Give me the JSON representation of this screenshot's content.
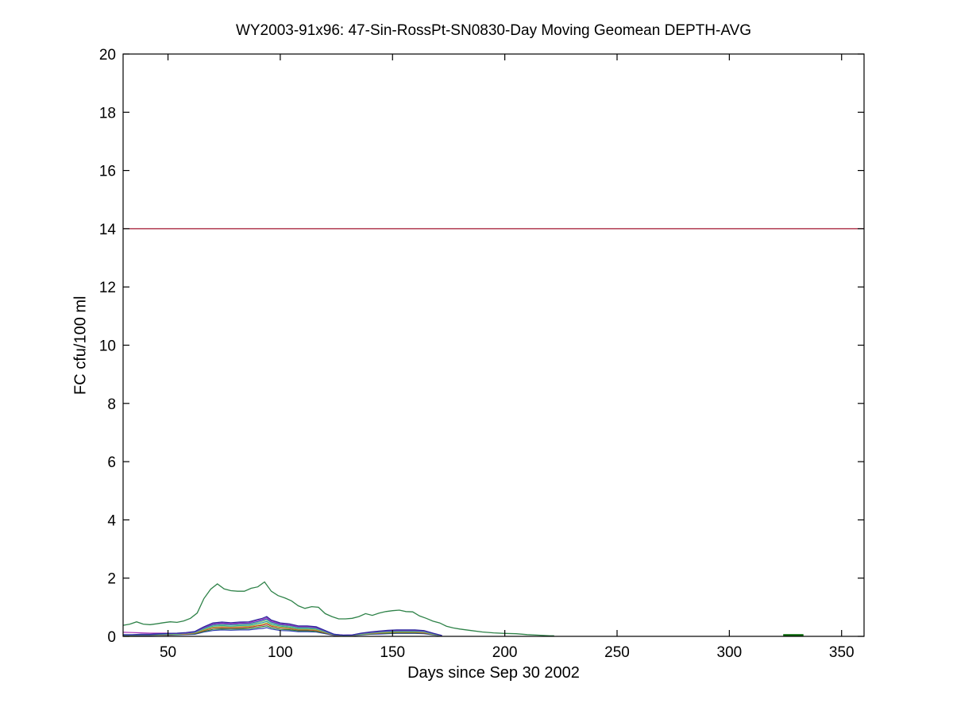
{
  "figure": {
    "background": "#ffffff"
  },
  "chart_data": {
    "type": "line",
    "title": "WY2003-91x96: 47-Sin-RossPt-SN0830-Day Moving Geomean DEPTH-AVG",
    "xlabel": "Days since Sep 30 2002",
    "ylabel": "FC cfu/100 ml",
    "xlim": [
      30,
      360
    ],
    "ylim": [
      0,
      20
    ],
    "xticks": [
      50,
      100,
      150,
      200,
      250,
      300,
      350
    ],
    "yticks": [
      0,
      2,
      4,
      6,
      8,
      10,
      12,
      14,
      16,
      18,
      20
    ],
    "grid": false,
    "legend": null,
    "axis_color": "#000000",
    "series": [
      {
        "name": "geomean-upper-envelope",
        "color": "#2e8248",
        "width": 1.3,
        "x": [
          30,
          33,
          36,
          39,
          42,
          45,
          48,
          51,
          54,
          57,
          60,
          63,
          66,
          69,
          72,
          75,
          78,
          81,
          84,
          87,
          90,
          93,
          96,
          99,
          102,
          105,
          108,
          111,
          114,
          117,
          120,
          123,
          126,
          129,
          132,
          135,
          138,
          141,
          144,
          147,
          150,
          153,
          156,
          159,
          162,
          165,
          168,
          171,
          174,
          177,
          180,
          185,
          190,
          195,
          200,
          205,
          210,
          215,
          220,
          222
        ],
        "y": [
          0.38,
          0.42,
          0.5,
          0.42,
          0.4,
          0.43,
          0.47,
          0.5,
          0.48,
          0.53,
          0.62,
          0.8,
          1.3,
          1.62,
          1.8,
          1.63,
          1.57,
          1.55,
          1.55,
          1.65,
          1.7,
          1.87,
          1.55,
          1.4,
          1.32,
          1.22,
          1.05,
          0.96,
          1.02,
          1.0,
          0.78,
          0.68,
          0.6,
          0.6,
          0.62,
          0.68,
          0.78,
          0.72,
          0.8,
          0.85,
          0.88,
          0.9,
          0.85,
          0.84,
          0.7,
          0.62,
          0.52,
          0.46,
          0.35,
          0.29,
          0.25,
          0.2,
          0.15,
          0.12,
          0.1,
          0.09,
          0.06,
          0.04,
          0.02,
          0.02
        ]
      },
      {
        "name": "scenario-medium-blue",
        "color": "#2d3cb4",
        "width": 1.2,
        "x": [
          30,
          34,
          38,
          42,
          46,
          50,
          54,
          58,
          62,
          66,
          70,
          74,
          78,
          82,
          86,
          90,
          92,
          94,
          96,
          100,
          104,
          108,
          112,
          116,
          120,
          124,
          128,
          132,
          136,
          140,
          144,
          148,
          152,
          156,
          160,
          164,
          168,
          172
        ],
        "y": [
          0.03,
          0.03,
          0.03,
          0.03,
          0.04,
          0.04,
          0.05,
          0.06,
          0.07,
          0.15,
          0.2,
          0.22,
          0.21,
          0.22,
          0.22,
          0.26,
          0.27,
          0.3,
          0.25,
          0.2,
          0.19,
          0.16,
          0.16,
          0.15,
          0.09,
          0.03,
          0.02,
          0.02,
          0.05,
          0.07,
          0.08,
          0.09,
          0.1,
          0.1,
          0.1,
          0.09,
          0.05,
          0.01
        ]
      },
      {
        "name": "scenario-dark-green",
        "color": "#2e8232",
        "width": 1.2,
        "x": [
          30,
          34,
          38,
          42,
          46,
          50,
          54,
          58,
          62,
          66,
          70,
          74,
          78,
          82,
          86,
          90,
          92,
          94,
          96,
          100,
          104,
          108,
          112,
          116,
          120,
          124,
          128,
          132,
          136,
          140,
          144,
          148,
          152,
          156,
          160,
          164,
          168,
          172
        ],
        "y": [
          0.03,
          0.03,
          0.04,
          0.04,
          0.05,
          0.05,
          0.06,
          0.07,
          0.09,
          0.17,
          0.24,
          0.26,
          0.25,
          0.26,
          0.27,
          0.31,
          0.33,
          0.36,
          0.3,
          0.24,
          0.23,
          0.19,
          0.19,
          0.17,
          0.11,
          0.04,
          0.02,
          0.03,
          0.06,
          0.08,
          0.1,
          0.11,
          0.12,
          0.12,
          0.12,
          0.11,
          0.06,
          0.02
        ]
      },
      {
        "name": "scenario-red",
        "color": "#c03232",
        "width": 1.2,
        "x": [
          30,
          34,
          38,
          42,
          46,
          50,
          54,
          58,
          62,
          66,
          70,
          74,
          78,
          82,
          86,
          90,
          92,
          94,
          96,
          100,
          104,
          108,
          112,
          116,
          120,
          124,
          128,
          132,
          136,
          140,
          144,
          148,
          152,
          156,
          160,
          164,
          168,
          172
        ],
        "y": [
          0.04,
          0.04,
          0.04,
          0.04,
          0.06,
          0.06,
          0.07,
          0.08,
          0.11,
          0.2,
          0.29,
          0.3,
          0.29,
          0.3,
          0.31,
          0.36,
          0.38,
          0.42,
          0.35,
          0.29,
          0.27,
          0.22,
          0.22,
          0.2,
          0.12,
          0.04,
          0.02,
          0.03,
          0.07,
          0.09,
          0.11,
          0.13,
          0.14,
          0.14,
          0.14,
          0.12,
          0.07,
          0.02
        ]
      },
      {
        "name": "scenario-olive",
        "color": "#b4b432",
        "width": 1.2,
        "x": [
          30,
          34,
          38,
          42,
          46,
          50,
          54,
          58,
          62,
          66,
          70,
          74,
          78,
          82,
          86,
          90,
          92,
          94,
          96,
          100,
          104,
          108,
          112,
          116,
          120,
          124,
          128,
          132,
          136,
          140,
          144,
          148,
          152,
          156,
          160,
          164,
          168,
          172
        ],
        "y": [
          0.04,
          0.04,
          0.05,
          0.05,
          0.06,
          0.07,
          0.07,
          0.09,
          0.12,
          0.22,
          0.31,
          0.33,
          0.32,
          0.33,
          0.34,
          0.39,
          0.42,
          0.46,
          0.38,
          0.31,
          0.29,
          0.24,
          0.24,
          0.22,
          0.14,
          0.05,
          0.03,
          0.03,
          0.07,
          0.1,
          0.12,
          0.14,
          0.15,
          0.15,
          0.15,
          0.14,
          0.07,
          0.02
        ]
      },
      {
        "name": "scenario-cyan",
        "color": "#28a0a0",
        "width": 1.2,
        "x": [
          30,
          34,
          38,
          42,
          46,
          50,
          54,
          58,
          62,
          66,
          70,
          74,
          78,
          82,
          86,
          90,
          92,
          94,
          96,
          100,
          104,
          108,
          112,
          116,
          120,
          124,
          128,
          132,
          136,
          140,
          144,
          148,
          152,
          156,
          160,
          164,
          168,
          172
        ],
        "y": [
          0.05,
          0.05,
          0.05,
          0.05,
          0.07,
          0.08,
          0.08,
          0.1,
          0.13,
          0.25,
          0.35,
          0.37,
          0.35,
          0.37,
          0.38,
          0.44,
          0.47,
          0.51,
          0.42,
          0.35,
          0.32,
          0.27,
          0.27,
          0.25,
          0.15,
          0.05,
          0.03,
          0.04,
          0.08,
          0.11,
          0.14,
          0.16,
          0.17,
          0.17,
          0.17,
          0.15,
          0.08,
          0.02
        ]
      },
      {
        "name": "scenario-light-green",
        "color": "#82c882",
        "width": 1.2,
        "x": [
          30,
          34,
          38,
          42,
          46,
          50,
          54,
          58,
          62,
          66,
          70,
          74,
          78,
          82,
          86,
          90,
          92,
          94,
          96,
          100,
          104,
          108,
          112,
          116,
          120,
          124,
          128,
          132,
          136,
          140,
          144,
          148,
          152,
          156,
          160,
          164,
          168,
          172
        ],
        "y": [
          0.05,
          0.05,
          0.06,
          0.06,
          0.07,
          0.08,
          0.09,
          0.11,
          0.14,
          0.27,
          0.38,
          0.4,
          0.39,
          0.4,
          0.41,
          0.48,
          0.51,
          0.56,
          0.46,
          0.38,
          0.35,
          0.3,
          0.3,
          0.27,
          0.16,
          0.06,
          0.03,
          0.04,
          0.09,
          0.12,
          0.15,
          0.17,
          0.18,
          0.18,
          0.18,
          0.16,
          0.09,
          0.02
        ]
      },
      {
        "name": "scenario-blue",
        "color": "#3050c8",
        "width": 1.2,
        "x": [
          30,
          34,
          38,
          42,
          46,
          50,
          54,
          58,
          62,
          66,
          70,
          74,
          78,
          82,
          86,
          90,
          92,
          94,
          96,
          100,
          104,
          108,
          112,
          116,
          120,
          124,
          128,
          132,
          136,
          140,
          144,
          148,
          152,
          156,
          160,
          164,
          168,
          172
        ],
        "y": [
          0.05,
          0.05,
          0.06,
          0.06,
          0.08,
          0.09,
          0.1,
          0.11,
          0.15,
          0.29,
          0.4,
          0.43,
          0.41,
          0.43,
          0.44,
          0.51,
          0.55,
          0.6,
          0.49,
          0.4,
          0.38,
          0.32,
          0.32,
          0.29,
          0.18,
          0.06,
          0.04,
          0.04,
          0.1,
          0.13,
          0.16,
          0.18,
          0.19,
          0.19,
          0.19,
          0.18,
          0.1,
          0.03
        ]
      },
      {
        "name": "scenario-magenta",
        "color": "#a832b4",
        "width": 1.2,
        "x": [
          30,
          34,
          38,
          42,
          46,
          50,
          54,
          58,
          62,
          66,
          70,
          74,
          78,
          82,
          86,
          90,
          92,
          94,
          96,
          100,
          104,
          108,
          112,
          116,
          120,
          124,
          128,
          132,
          136,
          140,
          144,
          148,
          152,
          156,
          160,
          164,
          168,
          172
        ],
        "y": [
          0.14,
          0.13,
          0.12,
          0.11,
          0.11,
          0.11,
          0.1,
          0.12,
          0.16,
          0.31,
          0.43,
          0.46,
          0.44,
          0.46,
          0.47,
          0.55,
          0.58,
          0.64,
          0.53,
          0.43,
          0.4,
          0.34,
          0.34,
          0.31,
          0.19,
          0.07,
          0.04,
          0.05,
          0.1,
          0.14,
          0.17,
          0.2,
          0.21,
          0.21,
          0.21,
          0.19,
          0.1,
          0.03
        ]
      },
      {
        "name": "scenario-navy",
        "color": "#28289e",
        "width": 1.2,
        "x": [
          30,
          34,
          38,
          42,
          46,
          50,
          54,
          58,
          62,
          66,
          70,
          74,
          78,
          82,
          86,
          90,
          92,
          94,
          96,
          100,
          104,
          108,
          112,
          116,
          120,
          124,
          128,
          132,
          136,
          140,
          144,
          148,
          152,
          156,
          160,
          164,
          168,
          172
        ],
        "y": [
          0.06,
          0.06,
          0.07,
          0.07,
          0.09,
          0.1,
          0.11,
          0.13,
          0.17,
          0.33,
          0.46,
          0.49,
          0.47,
          0.49,
          0.5,
          0.58,
          0.62,
          0.68,
          0.56,
          0.46,
          0.43,
          0.36,
          0.36,
          0.33,
          0.2,
          0.07,
          0.04,
          0.05,
          0.11,
          0.15,
          0.18,
          0.21,
          0.22,
          0.22,
          0.22,
          0.2,
          0.11,
          0.03
        ]
      },
      {
        "name": "late-season-segment",
        "color": "#006400",
        "width": 2.5,
        "x": [
          324,
          333
        ],
        "y": [
          0.04,
          0.04
        ]
      },
      {
        "name": "threshold-line-14",
        "color": "#a2142f",
        "width": 1.3,
        "x": [
          30,
          360
        ],
        "y": [
          14,
          14
        ]
      }
    ]
  }
}
